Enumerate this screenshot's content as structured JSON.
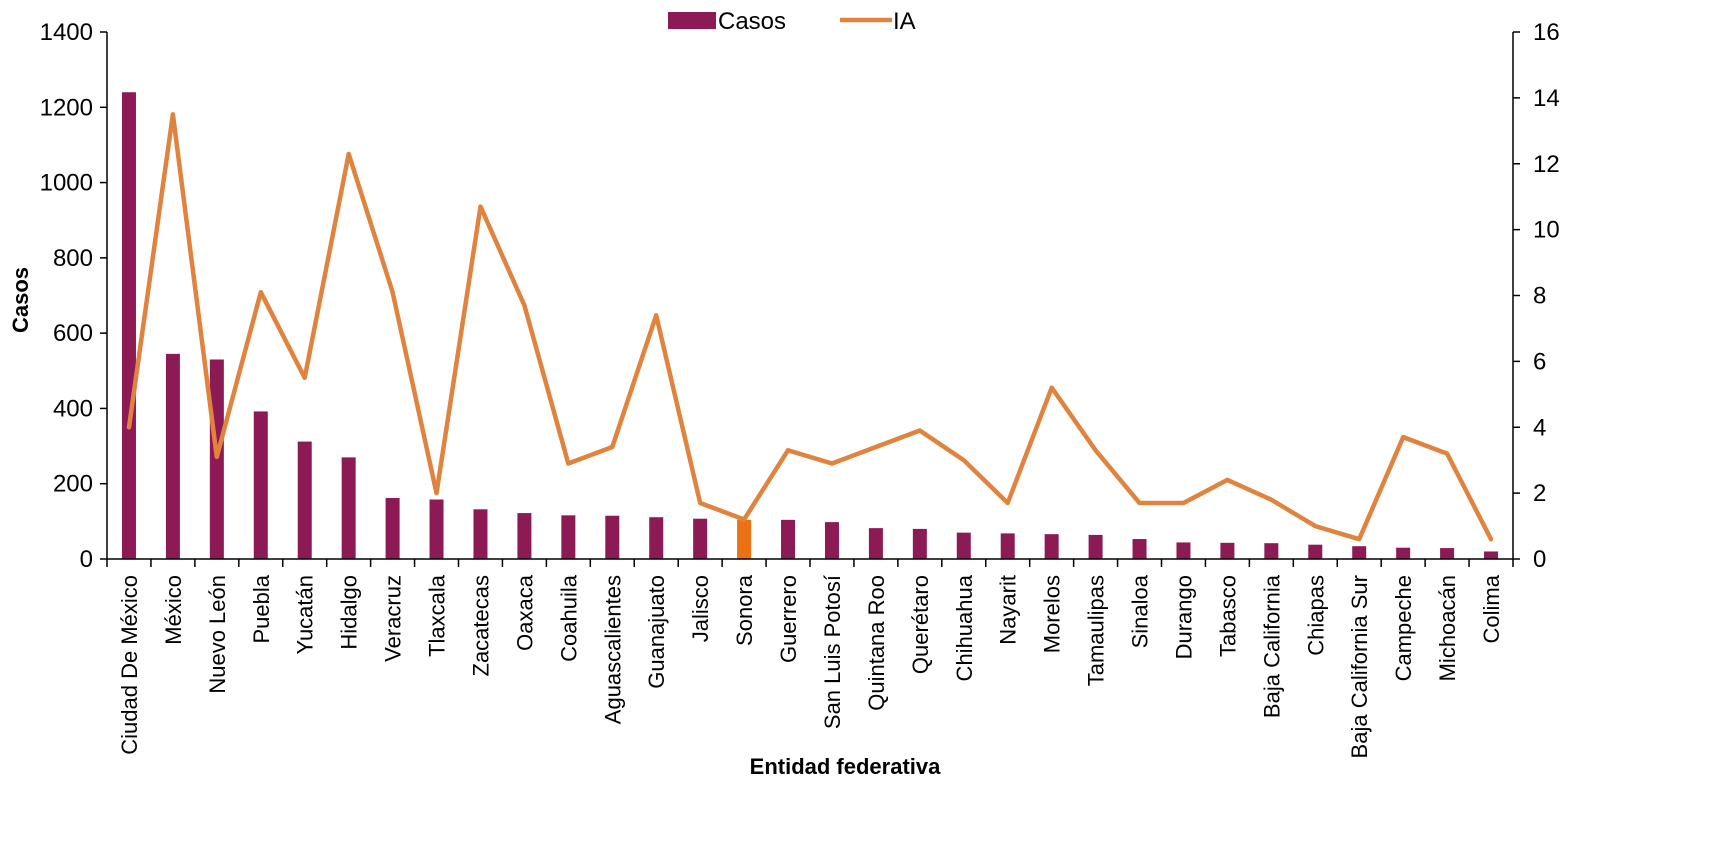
{
  "chart_data": {
    "type": "bar",
    "xlabel": "Entidad federativa",
    "ylabel": "Casos",
    "y2label": "",
    "ylim": [
      0,
      1400
    ],
    "y2lim": [
      0,
      16
    ],
    "yticks": [
      0,
      200,
      400,
      600,
      800,
      1000,
      1200,
      1400
    ],
    "y2ticks": [
      0,
      2,
      4,
      6,
      8,
      10,
      12,
      14,
      16
    ],
    "legend_position": "top-center",
    "grid": false,
    "categories": [
      "Ciudad De México",
      "México",
      "Nuevo León",
      "Puebla",
      "Yucatán",
      "Hidalgo",
      "Veracruz",
      "Tlaxcala",
      "Zacatecas",
      "Oaxaca",
      "Coahuila",
      "Aguascalientes",
      "Guanajuato",
      "Jalisco",
      "Sonora",
      "Guerrero",
      "San Luis Potosí",
      "Quintana Roo",
      "Querétaro",
      "Chihuahua",
      "Nayarit",
      "Morelos",
      "Tamaulipas",
      "Sinaloa",
      "Durango",
      "Tabasco",
      "Baja California",
      "Chiapas",
      "Baja California Sur",
      "Campeche",
      "Michoacán",
      "Colima"
    ],
    "highlight_category": "Sonora",
    "series": [
      {
        "name": "Casos",
        "type": "bar",
        "axis": "left",
        "color": "#8b1a55",
        "highlight_color": "#ec7014",
        "values": [
          1240,
          545,
          530,
          392,
          312,
          270,
          162,
          158,
          132,
          122,
          116,
          115,
          111,
          107,
          104,
          104,
          98,
          82,
          80,
          70,
          68,
          66,
          64,
          53,
          44,
          43,
          42,
          38,
          34,
          30,
          29,
          20
        ]
      },
      {
        "name": "IA",
        "type": "line",
        "axis": "right",
        "color": "#e0833f",
        "values": [
          4.0,
          13.5,
          3.1,
          8.1,
          5.5,
          12.3,
          8.1,
          2.0,
          10.7,
          7.7,
          2.9,
          3.4,
          7.4,
          1.7,
          1.2,
          3.3,
          2.9,
          3.4,
          3.9,
          3.0,
          1.7,
          5.2,
          3.3,
          1.7,
          1.7,
          2.4,
          1.8,
          1.0,
          0.6,
          3.7,
          3.2,
          0.6
        ]
      }
    ]
  }
}
